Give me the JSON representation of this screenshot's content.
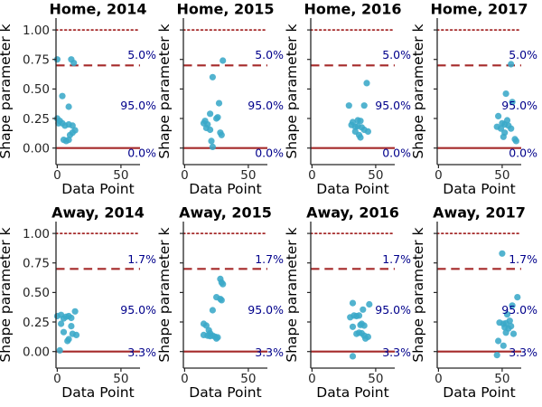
{
  "chart_data": {
    "type": "scatter",
    "xlabel": "Data Point",
    "ylabel": "Shape parameter k",
    "xticks": [
      "0",
      "50"
    ],
    "xtick_values": [
      0,
      50
    ],
    "yticks": [
      "0.00",
      "0.25",
      "0.50",
      "0.75",
      "1.00"
    ],
    "ytick_values": [
      0,
      0.25,
      0.5,
      0.75,
      1.0
    ],
    "xlim": [
      -1,
      65
    ],
    "ylim": [
      -0.14,
      1.1
    ],
    "grid": false,
    "legend": "none",
    "hlines": [
      {
        "y": 1.0,
        "style": "dotted"
      },
      {
        "y": 0.7,
        "style": "dashed"
      },
      {
        "y": 0.0,
        "style": "solid"
      }
    ],
    "colors": {
      "marker": "#3aa8c8",
      "line": "#a52a2a",
      "annotation": "#00008b",
      "axis": "#262626",
      "text": "#000000"
    },
    "panels": [
      {
        "title": "Home, 2014",
        "annotations": [
          {
            "text": "5.0%",
            "y": 0.786
          },
          {
            "text": "95.0%",
            "y": 0.356
          },
          {
            "text": "0.0%",
            "y": -0.045
          }
        ],
        "points": [
          [
            0,
            0.75
          ],
          [
            11,
            0.75
          ],
          [
            13,
            0.72
          ],
          [
            4,
            0.44
          ],
          [
            9,
            0.35
          ],
          [
            0,
            0.25
          ],
          [
            2,
            0.23
          ],
          [
            1,
            0.21
          ],
          [
            4,
            0.21
          ],
          [
            6,
            0.19
          ],
          [
            9,
            0.2
          ],
          [
            12,
            0.19
          ],
          [
            14,
            0.15
          ],
          [
            12,
            0.13
          ],
          [
            10,
            0.11
          ],
          [
            5,
            0.07
          ],
          [
            7,
            0.06
          ],
          [
            9,
            0.07
          ]
        ]
      },
      {
        "title": "Home, 2015",
        "annotations": [
          {
            "text": "5.0%",
            "y": 0.786
          },
          {
            "text": "95.0%",
            "y": 0.356
          },
          {
            "text": "0.0%",
            "y": -0.045
          }
        ],
        "points": [
          [
            30,
            0.74
          ],
          [
            22,
            0.6
          ],
          [
            27,
            0.38
          ],
          [
            26,
            0.26
          ],
          [
            20,
            0.29
          ],
          [
            25,
            0.25
          ],
          [
            16,
            0.23
          ],
          [
            15,
            0.21
          ],
          [
            18,
            0.2
          ],
          [
            17,
            0.17
          ],
          [
            20,
            0.155
          ],
          [
            28,
            0.13
          ],
          [
            29,
            0.11
          ],
          [
            21,
            0.06
          ],
          [
            22,
            0.01
          ]
        ]
      },
      {
        "title": "Home, 2016",
        "annotations": [
          {
            "text": "5.0%",
            "y": 0.786
          },
          {
            "text": "95.0%",
            "y": 0.356
          },
          {
            "text": "0.0%",
            "y": -0.045
          }
        ],
        "points": [
          [
            43,
            0.55
          ],
          [
            29,
            0.36
          ],
          [
            41,
            0.36
          ],
          [
            32,
            0.22
          ],
          [
            36,
            0.235
          ],
          [
            38,
            0.23
          ],
          [
            31,
            0.195
          ],
          [
            34,
            0.18
          ],
          [
            36,
            0.185
          ],
          [
            39,
            0.175
          ],
          [
            41,
            0.155
          ],
          [
            44,
            0.14
          ],
          [
            34,
            0.14
          ],
          [
            37,
            0.11
          ],
          [
            38,
            0.09
          ]
        ]
      },
      {
        "title": "Home, 2017",
        "annotations": [
          {
            "text": "5.0%",
            "y": 0.786
          },
          {
            "text": "95.0%",
            "y": 0.356
          },
          {
            "text": "0.0%",
            "y": -0.045
          }
        ],
        "points": [
          [
            57,
            0.71
          ],
          [
            53,
            0.46
          ],
          [
            58,
            0.39
          ],
          [
            47,
            0.27
          ],
          [
            50,
            0.21
          ],
          [
            46,
            0.18
          ],
          [
            49,
            0.165
          ],
          [
            52,
            0.2
          ],
          [
            54,
            0.235
          ],
          [
            55,
            0.19
          ],
          [
            57,
            0.165
          ],
          [
            52,
            0.13
          ],
          [
            51,
            0.095
          ],
          [
            60,
            0.075
          ],
          [
            61,
            0.06
          ]
        ]
      },
      {
        "title": "Away, 2014",
        "annotations": [
          {
            "text": "1.7%",
            "y": 0.78
          },
          {
            "text": "95.0%",
            "y": 0.35
          },
          {
            "text": "3.3%",
            "y": -0.01
          }
        ],
        "points": [
          [
            0,
            0.3
          ],
          [
            3,
            0.31
          ],
          [
            7,
            0.295
          ],
          [
            9,
            0.3
          ],
          [
            5,
            0.28
          ],
          [
            14,
            0.34
          ],
          [
            11,
            0.285
          ],
          [
            11,
            0.215
          ],
          [
            3,
            0.235
          ],
          [
            5,
            0.165
          ],
          [
            9,
            0.105
          ],
          [
            8,
            0.09
          ],
          [
            15,
            0.14
          ],
          [
            12,
            0.15
          ],
          [
            2,
            0.01
          ]
        ]
      },
      {
        "title": "Away, 2015",
        "annotations": [
          {
            "text": "1.7%",
            "y": 0.78
          },
          {
            "text": "95.0%",
            "y": 0.35
          },
          {
            "text": "3.3%",
            "y": -0.01
          }
        ],
        "points": [
          [
            28,
            0.615
          ],
          [
            29,
            0.585
          ],
          [
            30,
            0.57
          ],
          [
            25,
            0.46
          ],
          [
            28,
            0.445
          ],
          [
            29,
            0.435
          ],
          [
            22,
            0.35
          ],
          [
            15,
            0.235
          ],
          [
            17,
            0.22
          ],
          [
            19,
            0.18
          ],
          [
            20,
            0.155
          ],
          [
            15,
            0.14
          ],
          [
            18,
            0.135
          ],
          [
            20,
            0.13
          ],
          [
            22,
            0.135
          ],
          [
            24,
            0.125
          ],
          [
            25,
            0.11
          ],
          [
            26,
            0.12
          ]
        ]
      },
      {
        "title": "Away, 2016",
        "annotations": [
          {
            "text": "1.7%",
            "y": 0.78
          },
          {
            "text": "95.0%",
            "y": 0.35
          },
          {
            "text": "3.3%",
            "y": -0.01
          }
        ],
        "points": [
          [
            32,
            0.41
          ],
          [
            45,
            0.4
          ],
          [
            40,
            0.355
          ],
          [
            30,
            0.29
          ],
          [
            33,
            0.305
          ],
          [
            35,
            0.3
          ],
          [
            37,
            0.305
          ],
          [
            32,
            0.21
          ],
          [
            38,
            0.225
          ],
          [
            39,
            0.235
          ],
          [
            41,
            0.22
          ],
          [
            35,
            0.15
          ],
          [
            37,
            0.16
          ],
          [
            39,
            0.155
          ],
          [
            41,
            0.135
          ],
          [
            42,
            0.11
          ],
          [
            44,
            0.125
          ],
          [
            32,
            -0.04
          ]
        ]
      },
      {
        "title": "Away, 2017",
        "annotations": [
          {
            "text": "1.7%",
            "y": 0.78
          },
          {
            "text": "95.0%",
            "y": 0.35
          },
          {
            "text": "3.3%",
            "y": -0.01
          }
        ],
        "points": [
          [
            50,
            0.83
          ],
          [
            62,
            0.46
          ],
          [
            58,
            0.39
          ],
          [
            54,
            0.315
          ],
          [
            48,
            0.245
          ],
          [
            51,
            0.235
          ],
          [
            53,
            0.24
          ],
          [
            56,
            0.26
          ],
          [
            52,
            0.205
          ],
          [
            55,
            0.195
          ],
          [
            57,
            0.215
          ],
          [
            53,
            0.16
          ],
          [
            59,
            0.15
          ],
          [
            47,
            0.09
          ],
          [
            51,
            0.05
          ],
          [
            46,
            -0.03
          ]
        ]
      }
    ]
  }
}
